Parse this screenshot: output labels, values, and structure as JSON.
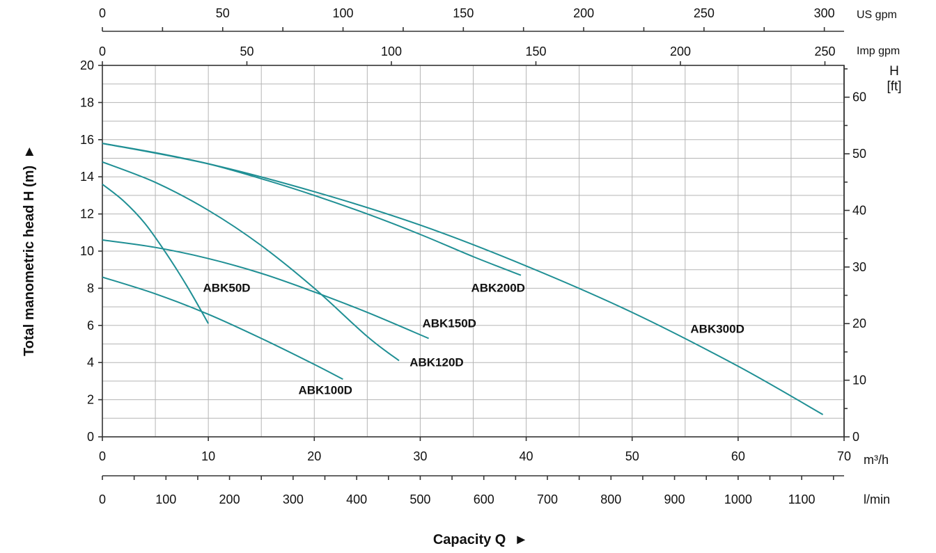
{
  "chart_data": {
    "type": "line",
    "x_unit": "m³/h",
    "xlim": [
      0,
      70
    ],
    "ylim": [
      0,
      20
    ],
    "grid": true,
    "x_ticks": [
      "0",
      "10",
      "20",
      "30",
      "40",
      "50",
      "60",
      "70"
    ],
    "y_ticks": [
      "0",
      "2",
      "4",
      "6",
      "8",
      "10",
      "12",
      "14",
      "16",
      "18",
      "20"
    ],
    "xlabel": "Capacity Q",
    "xlabel_arrow": "►",
    "ylabel": "Total manometric head H (m)",
    "ylabel_arrow": "►",
    "right_axis": {
      "title_line1": "H",
      "title_line2": "[ft]",
      "ticks": [
        "0",
        "10",
        "20",
        "30",
        "40",
        "50",
        "60"
      ],
      "values": [
        0,
        10,
        20,
        30,
        40,
        50,
        60
      ]
    },
    "top_axis_us": {
      "unit": "US gpm",
      "ticks": [
        "0",
        "50",
        "100",
        "150",
        "200",
        "250",
        "300"
      ],
      "values": [
        0,
        50,
        100,
        150,
        200,
        250,
        300
      ]
    },
    "top_axis_imp": {
      "unit": "Imp gpm",
      "ticks": [
        "0",
        "50",
        "100",
        "150",
        "200",
        "250"
      ],
      "values": [
        0,
        50,
        100,
        150,
        200,
        250
      ]
    },
    "bottom_axis_lmin": {
      "unit": "l/min",
      "ticks": [
        "0",
        "100",
        "200",
        "300",
        "400",
        "500",
        "600",
        "700",
        "800",
        "900",
        "1000",
        "1100"
      ],
      "values": [
        0,
        100,
        200,
        300,
        400,
        500,
        600,
        700,
        800,
        900,
        1000,
        1100
      ]
    },
    "curve_color": "#1f8f94",
    "series": [
      {
        "name": "ABK50D",
        "x": [
          0,
          2,
          4,
          6,
          8,
          10
        ],
        "y": [
          13.6,
          12.7,
          11.5,
          9.9,
          8.1,
          6.1
        ]
      },
      {
        "name": "ABK100D",
        "x": [
          0,
          5,
          10,
          15,
          20,
          22.7
        ],
        "y": [
          8.6,
          7.7,
          6.6,
          5.3,
          3.9,
          3.1
        ]
      },
      {
        "name": "ABK120D",
        "x": [
          0,
          5,
          10,
          15,
          20,
          25,
          28
        ],
        "y": [
          14.8,
          13.7,
          12.2,
          10.3,
          8.0,
          5.4,
          4.1
        ]
      },
      {
        "name": "ABK150D",
        "x": [
          0,
          5,
          10,
          15,
          20,
          25,
          30.8
        ],
        "y": [
          10.6,
          10.2,
          9.6,
          8.8,
          7.8,
          6.7,
          5.3
        ]
      },
      {
        "name": "ABK200D",
        "x": [
          0,
          5,
          10,
          15,
          20,
          25,
          30,
          35,
          39.5
        ],
        "y": [
          15.8,
          15.3,
          14.7,
          13.9,
          13.0,
          12.0,
          10.9,
          9.7,
          8.7
        ]
      },
      {
        "name": "ABK300D",
        "x": [
          0,
          10,
          20,
          30,
          40,
          50,
          60,
          68
        ],
        "y": [
          15.8,
          14.7,
          13.2,
          11.4,
          9.2,
          6.7,
          3.8,
          1.2
        ]
      }
    ],
    "label_anchors": {
      "ABK50D": [
        9.5,
        7.8
      ],
      "ABK100D": [
        18.5,
        2.3
      ],
      "ABK120D": [
        29,
        3.8
      ],
      "ABK150D": [
        30.2,
        5.9
      ],
      "ABK200D": [
        34.8,
        7.8
      ],
      "ABK300D": [
        55.5,
        5.6
      ]
    }
  }
}
